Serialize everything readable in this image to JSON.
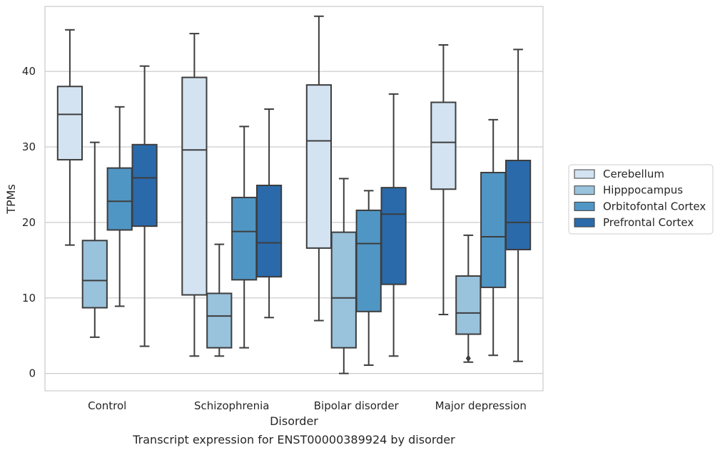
{
  "chart_data": {
    "type": "boxplot",
    "xlabel": "Disorder",
    "ylabel": "TPMs",
    "caption": "Transcript expression for ENST00000389924 by disorder",
    "ylim": [
      -2.3,
      48.6
    ],
    "yticks": [
      0,
      10,
      20,
      30,
      40
    ],
    "ytick_labels": [
      "0",
      "10",
      "20",
      "30",
      "40"
    ],
    "grid": "horizontal",
    "legend_position": "right",
    "categories": [
      "Control",
      "Schizophrenia",
      "Bipolar disorder",
      "Major depression"
    ],
    "series": [
      {
        "name": "Cerebellum",
        "color": "#d3e3f1",
        "boxes": [
          {
            "whislo": 17.0,
            "q1": 28.3,
            "med": 34.3,
            "q3": 38.0,
            "whishi": 45.5,
            "fliers": []
          },
          {
            "whislo": 2.3,
            "q1": 10.4,
            "med": 29.6,
            "q3": 39.2,
            "whishi": 45.0,
            "fliers": []
          },
          {
            "whislo": 7.0,
            "q1": 16.6,
            "med": 30.8,
            "q3": 38.2,
            "whishi": 47.3,
            "fliers": []
          },
          {
            "whislo": 7.8,
            "q1": 24.4,
            "med": 30.6,
            "q3": 35.9,
            "whishi": 43.5,
            "fliers": []
          }
        ]
      },
      {
        "name": "Hipppocampus",
        "color": "#99c2dc",
        "boxes": [
          {
            "whislo": 4.8,
            "q1": 8.7,
            "med": 12.3,
            "q3": 17.6,
            "whishi": 30.6,
            "fliers": []
          },
          {
            "whislo": 2.3,
            "q1": 3.4,
            "med": 7.6,
            "q3": 10.6,
            "whishi": 17.1,
            "fliers": []
          },
          {
            "whislo": 0.0,
            "q1": 3.4,
            "med": 10.0,
            "q3": 18.7,
            "whishi": 25.8,
            "fliers": []
          },
          {
            "whislo": 1.5,
            "q1": 5.2,
            "med": 8.0,
            "q3": 12.9,
            "whishi": 18.3,
            "fliers": [
              2.0
            ]
          }
        ]
      },
      {
        "name": "Orbitofontal Cortex",
        "color": "#5096c5",
        "boxes": [
          {
            "whislo": 8.9,
            "q1": 19.0,
            "med": 22.8,
            "q3": 27.2,
            "whishi": 35.3,
            "fliers": []
          },
          {
            "whislo": 3.4,
            "q1": 12.4,
            "med": 18.8,
            "q3": 23.3,
            "whishi": 32.7,
            "fliers": []
          },
          {
            "whislo": 1.1,
            "q1": 8.2,
            "med": 17.2,
            "q3": 21.6,
            "whishi": 24.2,
            "fliers": []
          },
          {
            "whislo": 2.4,
            "q1": 11.4,
            "med": 18.1,
            "q3": 26.6,
            "whishi": 33.6,
            "fliers": []
          }
        ]
      },
      {
        "name": "Prefrontal Cortex",
        "color": "#2a6aab",
        "boxes": [
          {
            "whislo": 3.6,
            "q1": 19.5,
            "med": 25.9,
            "q3": 30.3,
            "whishi": 40.7,
            "fliers": []
          },
          {
            "whislo": 7.4,
            "q1": 12.8,
            "med": 17.3,
            "q3": 24.9,
            "whishi": 35.0,
            "fliers": []
          },
          {
            "whislo": 2.3,
            "q1": 11.8,
            "med": 21.1,
            "q3": 24.6,
            "whishi": 37.0,
            "fliers": []
          },
          {
            "whislo": 1.6,
            "q1": 16.4,
            "med": 20.0,
            "q3": 28.2,
            "whishi": 42.9,
            "fliers": []
          }
        ]
      }
    ]
  }
}
